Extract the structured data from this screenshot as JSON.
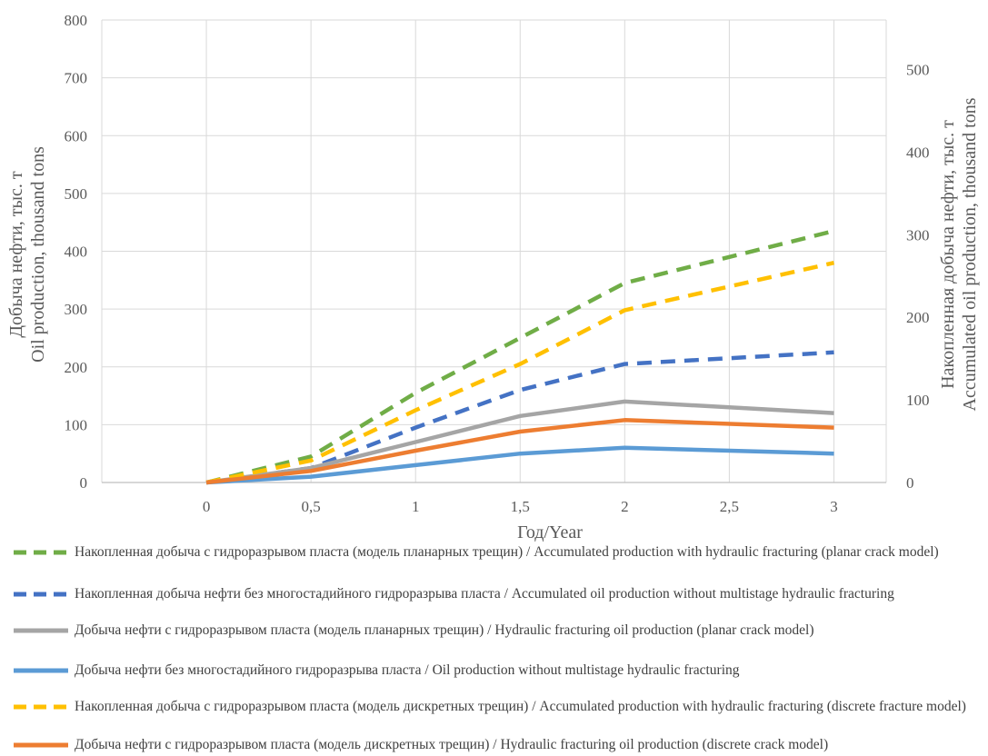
{
  "chart_data": {
    "type": "line",
    "title": "",
    "xlabel": "Год/Year",
    "ylabel_left": [
      "Добыча нефти, тыс. т",
      "Oil production, thousand tons"
    ],
    "ylabel_right": [
      "Накопленная добыча нефти, тыс. т",
      "Accumulated oil production, thousand tons"
    ],
    "x": [
      0,
      0.5,
      1,
      1.5,
      2,
      3
    ],
    "xlim": [
      -0.5,
      3.25
    ],
    "ylim_left": [
      0,
      800
    ],
    "ylim_right": [
      0,
      560
    ],
    "x_ticks": [
      "0",
      "0,5",
      "1",
      "1,5",
      "2",
      "2,5",
      "3"
    ],
    "x_tick_values": [
      0,
      0.5,
      1,
      1.5,
      2,
      2.5,
      3
    ],
    "y_left_ticks": [
      "0",
      "100",
      "200",
      "300",
      "400",
      "500",
      "600",
      "700",
      "800"
    ],
    "y_left_tick_values": [
      0,
      100,
      200,
      300,
      400,
      500,
      600,
      700,
      800
    ],
    "y_right_ticks": [
      "0",
      "100",
      "200",
      "300",
      "400",
      "500"
    ],
    "y_right_tick_values": [
      0,
      100,
      200,
      300,
      400,
      500
    ],
    "grid": true,
    "legend_position": "bottom",
    "series": [
      {
        "name": "Накопленная добыча с гидроразрывом пласта (модель планарных трещин) / Accumulated production with hydraulic fracturing (planar crack model)",
        "axis": "left",
        "dash": true,
        "color": "#70ad47",
        "values": [
          0,
          45,
          155,
          250,
          345,
          435
        ]
      },
      {
        "name": "Накопленная добыча нефти без многостадийного гидроразрыва пласта / Accumulated oil production without multistage hydraulic fracturing",
        "axis": "left",
        "dash": true,
        "color": "#4472c4",
        "values": [
          0,
          25,
          95,
          160,
          205,
          225
        ]
      },
      {
        "name": "Добыча нефти с гидроразрывом пласта (модель планарных трещин) / Hydraulic fracturing oil production (planar crack model)",
        "axis": "left",
        "dash": false,
        "color": "#a5a5a5",
        "values": [
          0,
          25,
          70,
          115,
          140,
          120
        ]
      },
      {
        "name": "Добыча нефти без многостадийного гидроразрыва пласта / Oil production without multistage hydraulic fracturing",
        "axis": "left",
        "dash": false,
        "color": "#5b9bd5",
        "values": [
          0,
          10,
          30,
          50,
          60,
          50
        ]
      },
      {
        "name": "Накопленная добыча с гидроразрывом пласта (модель дискретных трещин) / Accumulated production with hydraulic fracturing (discrete fracture model)",
        "axis": "left",
        "dash": true,
        "color": "#ffc000",
        "values": [
          0,
          38,
          125,
          205,
          298,
          380
        ]
      },
      {
        "name": "Добыча нефти с гидроразрывом пласта (модель дискретных трещин) / Hydraulic fracturing oil production (discrete crack model)",
        "axis": "left",
        "dash": false,
        "color": "#ed7d31",
        "values": [
          0,
          20,
          55,
          88,
          108,
          95
        ]
      }
    ]
  }
}
